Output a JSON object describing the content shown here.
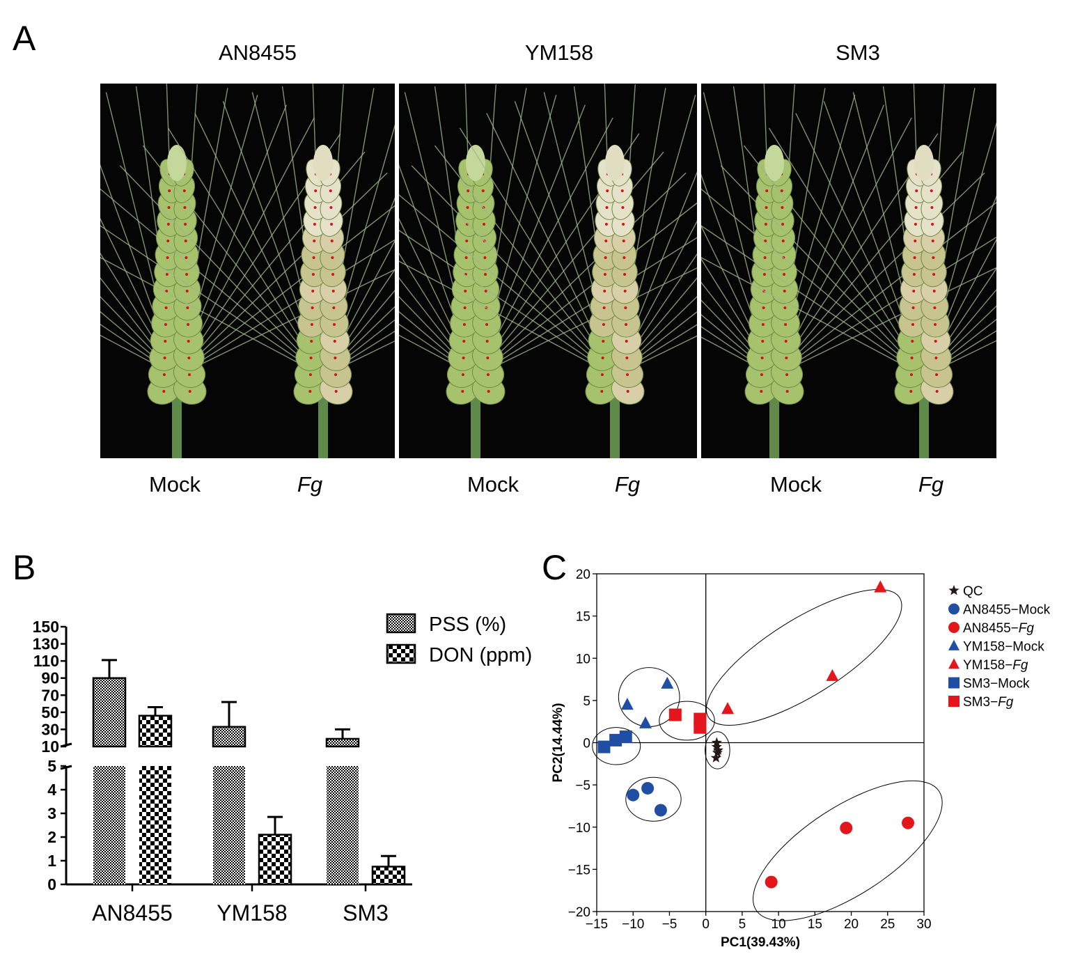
{
  "figure": {
    "panel_a": {
      "letter": "A",
      "cultivars": [
        "AN8455",
        "YM158",
        "SM3"
      ],
      "treatments": [
        "Mock",
        "Fg"
      ],
      "description": "Wheat spikes, mock vs Fusarium graminearum (Fg) inoculated"
    },
    "panel_b": {
      "letter": "B"
    },
    "panel_c": {
      "letter": "C"
    }
  },
  "chart_data": [
    {
      "type": "bar",
      "panel": "B",
      "categories": [
        "AN8455",
        "YM158",
        "SM3"
      ],
      "series": [
        {
          "name": "PSS (%)",
          "values": [
            90,
            33,
            19
          ],
          "errors": [
            21,
            29,
            11
          ],
          "pattern": "fine-check"
        },
        {
          "name": "DON (ppm)",
          "values": [
            46,
            2.1,
            0.75
          ],
          "errors": [
            10,
            0.75,
            0.45
          ],
          "pattern": "coarse-check"
        }
      ],
      "axis_break": {
        "lower_range": [
          0,
          5
        ],
        "upper_range": [
          10,
          150
        ]
      },
      "yticks_lower": [
        0,
        1,
        2,
        3,
        4,
        5
      ],
      "yticks_upper": [
        10,
        30,
        50,
        70,
        90,
        110,
        130,
        150
      ],
      "legend": [
        "PSS (%)",
        "DON (ppm)"
      ],
      "legend_position": "top-right",
      "xlabel": "",
      "ylabel": ""
    },
    {
      "type": "scatter",
      "panel": "C",
      "xlabel": "PC1(39.43%)",
      "ylabel": "PC2(14.44%)",
      "xlim": [
        -15,
        30
      ],
      "ylim": [
        -20,
        20
      ],
      "xticks": [
        -15,
        -10,
        -5,
        0,
        5,
        10,
        15,
        20,
        25,
        30
      ],
      "xtick_labels": [
        "−15",
        "−10",
        "−5",
        "0",
        "5",
        "10",
        "15",
        "20",
        "25",
        "30"
      ],
      "yticks": [
        -20,
        -15,
        -10,
        -5,
        0,
        5,
        10,
        15,
        20
      ],
      "ytick_labels": [
        "−20",
        "−15",
        "−10",
        "−5",
        "0",
        "5",
        "10",
        "15",
        "20"
      ],
      "legend_position": "right",
      "groups": [
        {
          "name": "QC",
          "legend_prefix": "QC",
          "legend_suffix": "",
          "shape": "star",
          "color": "#231815",
          "points": [
            [
              1.5,
              -0.5
            ],
            [
              1.5,
              0
            ],
            [
              1.6,
              -1.2
            ],
            [
              1.4,
              -1.8
            ],
            [
              1.7,
              -0.9
            ]
          ]
        },
        {
          "name": "AN8455-Mock",
          "legend_prefix": "AN8455−Mock",
          "legend_suffix": "",
          "shape": "circle",
          "color": "#1f4ea3",
          "points": [
            [
              -10,
              -6.2
            ],
            [
              -8,
              -5.4
            ],
            [
              -6.2,
              -8
            ]
          ]
        },
        {
          "name": "AN8455-Fg",
          "legend_prefix": "AN8455−",
          "legend_suffix": "Fg",
          "shape": "circle",
          "color": "#e3161c",
          "points": [
            [
              9,
              -16.5
            ],
            [
              19.3,
              -10.1
            ],
            [
              27.8,
              -9.5
            ]
          ]
        },
        {
          "name": "YM158-Mock",
          "legend_prefix": "YM158−Mock",
          "legend_suffix": "",
          "shape": "triangle",
          "color": "#1f4ea3",
          "points": [
            [
              -10.8,
              4.5
            ],
            [
              -8.3,
              2.3
            ],
            [
              -5.3,
              7
            ]
          ]
        },
        {
          "name": "YM158-Fg",
          "legend_prefix": "YM158−",
          "legend_suffix": "Fg",
          "shape": "triangle",
          "color": "#e3161c",
          "points": [
            [
              3,
              4
            ],
            [
              17.4,
              7.9
            ],
            [
              24,
              18.4
            ]
          ]
        },
        {
          "name": "SM3-Mock",
          "legend_prefix": "SM3−Mock",
          "legend_suffix": "",
          "shape": "square",
          "color": "#1f4ea3",
          "points": [
            [
              -14,
              -0.5
            ],
            [
              -12.4,
              0.3
            ],
            [
              -11,
              0.7
            ]
          ]
        },
        {
          "name": "SM3-Fg",
          "legend_prefix": "SM3−",
          "legend_suffix": "Fg",
          "shape": "square",
          "color": "#e3161c",
          "points": [
            [
              -4.2,
              3.3
            ],
            [
              -0.8,
              2.8
            ],
            [
              -0.8,
              1.8
            ]
          ]
        }
      ],
      "ellipses": [
        {
          "group": "QC",
          "cx": 1.6,
          "cy": -0.9,
          "rx": 1.7,
          "ry": 2.2,
          "angle": 0
        },
        {
          "group": "AN8455-Mock",
          "cx": -7.2,
          "cy": -6.7,
          "rx": 3.8,
          "ry": 2.6,
          "angle": 0
        },
        {
          "group": "AN8455-Fg",
          "cx": 19.5,
          "cy": -12.8,
          "rx": 15,
          "ry": 5.2,
          "angle": 33
        },
        {
          "group": "YM158-Mock",
          "cx": -7.8,
          "cy": 5.4,
          "rx": 4.2,
          "ry": 3.5,
          "angle": 0
        },
        {
          "group": "YM158-Fg",
          "cx": 13.5,
          "cy": 10.1,
          "rx": 15.5,
          "ry": 4.5,
          "angle": 32
        },
        {
          "group": "SM3-Mock",
          "cx": -12.3,
          "cy": -0.4,
          "rx": 3.3,
          "ry": 2.2,
          "angle": 0
        },
        {
          "group": "SM3-Fg",
          "cx": -2.6,
          "cy": 2.6,
          "rx": 3.8,
          "ry": 2.3,
          "angle": 0
        }
      ]
    }
  ]
}
